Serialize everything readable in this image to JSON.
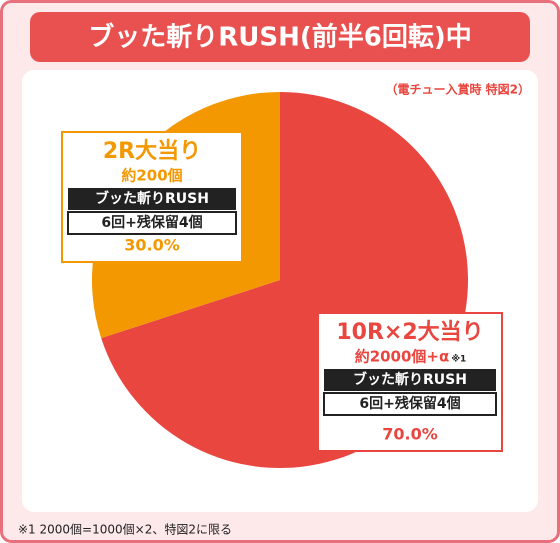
{
  "chart_data": {
    "type": "pie",
    "title": "ブッた斬りRUSH(前半6回転)中",
    "subtitle": "（電チュー入賞時 特図2）",
    "categories": [
      "10R×2大当り",
      "2R大当り"
    ],
    "values": [
      70,
      30
    ],
    "value_labels": [
      "70.0%",
      "30.0%"
    ],
    "colors": [
      "#e8463f",
      "#f39800"
    ],
    "details": [
      {
        "payout": "約2000個+α",
        "payout_note": "※1",
        "mode": "ブッた斬りRUSH",
        "spins": "6回+残保留4個"
      },
      {
        "payout": "約200個",
        "mode": "ブッた斬りRUSH",
        "spins": "6回+残保留4個"
      }
    ],
    "footnote": "※1 2000個=1000個×2、特図2に限る"
  }
}
